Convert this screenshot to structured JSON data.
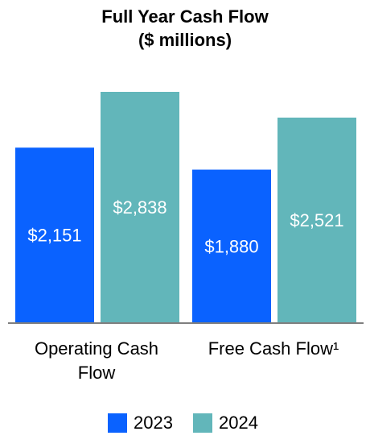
{
  "chart_data": {
    "type": "bar",
    "title": "Full Year Cash Flow",
    "subtitle": "($ millions)",
    "categories": [
      "Operating Cash Flow",
      "Free Cash Flow¹"
    ],
    "category_lines": [
      [
        "Operating Cash",
        "Flow"
      ],
      [
        "Free Cash Flow¹"
      ]
    ],
    "series": [
      {
        "name": "2023",
        "values": [
          2151,
          1880
        ],
        "labels": [
          "$2,151",
          "$1,880"
        ],
        "color": "#0a62ff"
      },
      {
        "name": "2024",
        "values": [
          2838,
          2521
        ],
        "labels": [
          "$2,838",
          "$2,521"
        ],
        "color": "#62b6ba"
      }
    ],
    "ylim": [
      0,
      2838
    ],
    "grid": false,
    "legend_position": "bottom"
  }
}
